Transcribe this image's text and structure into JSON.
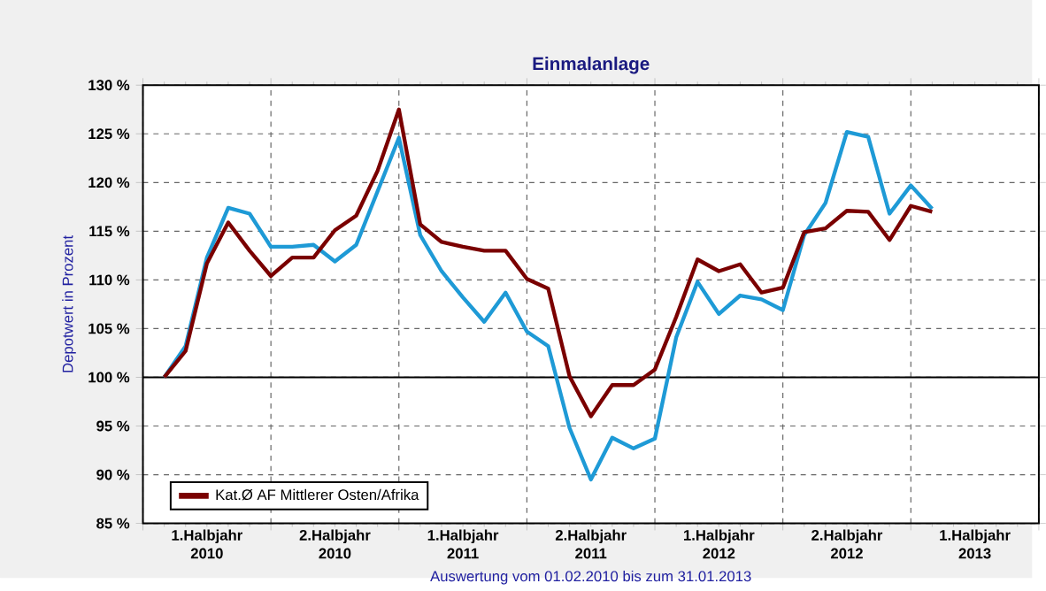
{
  "chart_data": {
    "type": "line",
    "title": "Einmalanlage",
    "ylabel": "Depotwert in Prozent",
    "xlabel": "Auswertung vom 01.02.2010 bis zum 31.01.2013",
    "x": [
      "2010-02",
      "2010-03",
      "2010-04",
      "2010-05",
      "2010-06",
      "2010-07",
      "2010-08",
      "2010-09",
      "2010-10",
      "2010-11",
      "2010-12",
      "2011-01",
      "2011-02",
      "2011-03",
      "2011-04",
      "2011-05",
      "2011-06",
      "2011-07",
      "2011-08",
      "2011-09",
      "2011-10",
      "2011-11",
      "2011-12",
      "2012-01",
      "2012-02",
      "2012-03",
      "2012-04",
      "2012-05",
      "2012-06",
      "2012-07",
      "2012-08",
      "2012-09",
      "2012-10",
      "2012-11",
      "2012-12",
      "2013-01",
      "2013-02"
    ],
    "series": [
      {
        "color": "#1e9ad6",
        "values": [
          100,
          103.2,
          112.3,
          117.4,
          116.8,
          113.4,
          113.4,
          113.6,
          111.9,
          113.6,
          119.1,
          124.6,
          114.6,
          110.9,
          108.2,
          105.7,
          108.7,
          104.7,
          103.2,
          94.8,
          89.5,
          93.8,
          92.7,
          93.7,
          104.1,
          109.8,
          106.5,
          108.4,
          108.0,
          106.9,
          114.6,
          117.9,
          125.2,
          124.7,
          116.8,
          119.7,
          117.3
        ]
      },
      {
        "name": "Kat.Ø AF Mittlerer Osten/Afrika",
        "color": "#7a0000",
        "values": [
          100,
          102.7,
          111.7,
          115.9,
          113.0,
          110.4,
          112.3,
          112.3,
          115.1,
          116.6,
          121.2,
          127.5,
          115.7,
          113.9,
          113.4,
          113.0,
          113.0,
          110.1,
          109.1,
          100.1,
          96.0,
          99.2,
          99.2,
          100.8,
          106.2,
          112.1,
          110.9,
          111.6,
          108.7,
          109.2,
          114.9,
          115.3,
          117.1,
          117.0,
          114.1,
          117.6,
          117.0
        ]
      }
    ],
    "xlim": [
      "2010-01",
      "2013-07"
    ],
    "xticks": [
      {
        "value": "2010-01",
        "label": null
      },
      {
        "value": "2010-04",
        "label": "1.Halbjahr 2010"
      },
      {
        "value": "2010-07",
        "label": null
      },
      {
        "value": "2010-10",
        "label": "2.Halbjahr 2010"
      },
      {
        "value": "2011-01",
        "label": null
      },
      {
        "value": "2011-04",
        "label": "1.Halbjahr 2011"
      },
      {
        "value": "2011-07",
        "label": null
      },
      {
        "value": "2011-10",
        "label": "2.Halbjahr 2011"
      },
      {
        "value": "2012-01",
        "label": null
      },
      {
        "value": "2012-04",
        "label": "1.Halbjahr 2012"
      },
      {
        "value": "2012-07",
        "label": null
      },
      {
        "value": "2012-10",
        "label": "2.Halbjahr 2012"
      },
      {
        "value": "2013-01",
        "label": null
      },
      {
        "value": "2013-04",
        "label": "1.Halbjahr 2013"
      },
      {
        "value": "2013-07",
        "label": null
      }
    ],
    "ylim": [
      85,
      130
    ],
    "yticks": [
      {
        "value": 85,
        "label": "85 %"
      },
      {
        "value": 90,
        "label": "90 %"
      },
      {
        "value": 95,
        "label": "95 %"
      },
      {
        "value": 100,
        "label": "100 %"
      },
      {
        "value": 105,
        "label": "105 %"
      },
      {
        "value": 110,
        "label": "110 %"
      },
      {
        "value": 115,
        "label": "115 %"
      },
      {
        "value": 120,
        "label": "120 %"
      },
      {
        "value": 125,
        "label": "125 %"
      },
      {
        "value": 130,
        "label": "130 %"
      }
    ],
    "ref_lines": [
      {
        "axis": "y",
        "value": 100,
        "color": "#000000"
      }
    ],
    "grid": true,
    "legend": "bottom left",
    "marker": "none",
    "line_style": "solid"
  }
}
